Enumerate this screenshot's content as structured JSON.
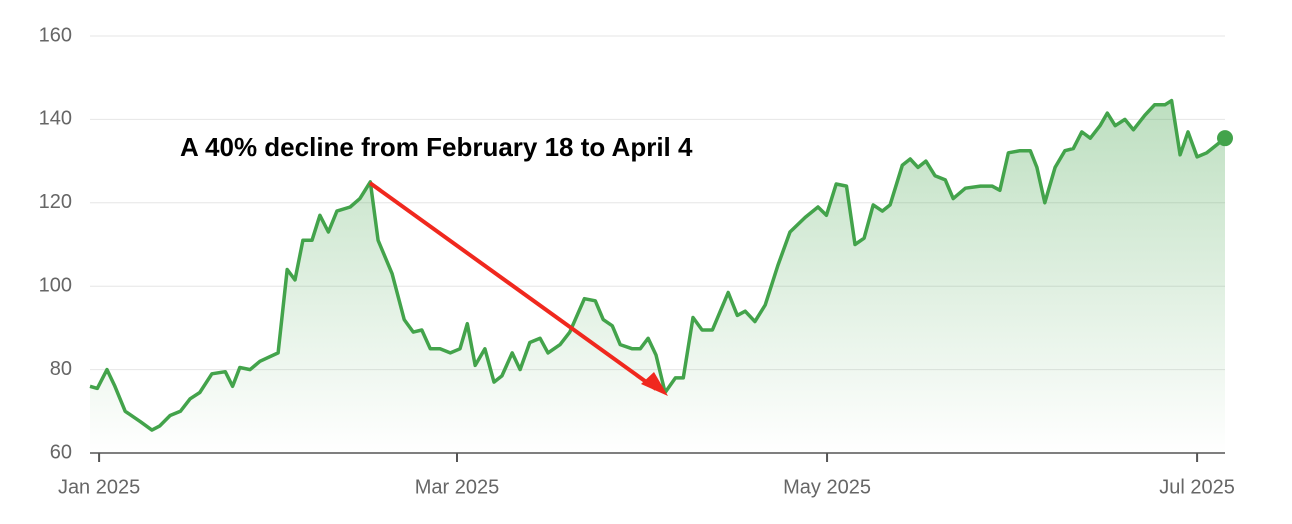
{
  "chart_data": {
    "type": "line",
    "annotation": "A 40% decline from February 18 to April 4",
    "color": "#43a34b",
    "x": [
      -1.5,
      -0.3,
      1.3,
      2.6,
      4.3,
      6.8,
      8.7,
      10,
      11.7,
      13.4,
      15,
      16.6,
      18.6,
      20.8,
      22,
      23.2,
      24.9,
      26.5,
      29.5,
      31,
      32.3,
      33.6,
      35.1,
      36.4,
      37.8,
      39.2,
      41.4,
      43,
      44.7,
      46,
      48.3,
      50.3,
      51.8,
      53.2,
      54.6,
      56.2,
      57.9,
      59.5,
      60.7,
      62,
      63.6,
      65.1,
      66.4,
      68.1,
      69.4,
      71,
      72.7,
      74,
      76,
      77.6,
      80,
      81.8,
      83.1,
      84.6,
      85.9,
      87.9,
      89.2,
      90.5,
      91.8,
      93.3,
      95,
      96.3,
      97.9,
      99.4,
      101.1,
      102.4,
      103.7,
      105.2,
      106.5,
      108.1,
      109.8,
      111.9,
      113.9,
      116.4,
      118.5,
      119.9,
      121.5,
      123.2,
      124.6,
      126.1,
      127.6,
      129.1,
      130.4,
      132.4,
      133.7,
      135,
      136.3,
      137.8,
      139.5,
      140.8,
      142.8,
      145.3,
      147.2,
      148.5,
      149.9,
      151.8,
      153.5,
      154.6,
      155.9,
      157.6,
      159.2,
      160.6,
      162,
      163.4,
      165,
      166.2,
      167.5,
      169.1,
      170.5,
      172.4,
      174,
      175.7,
      176.8,
      178.2,
      179.5,
      181,
      182.6,
      185.6
    ],
    "values": [
      76,
      75.5,
      80,
      76,
      70,
      67.5,
      65.5,
      66.5,
      69,
      70,
      73,
      74.5,
      79,
      79.5,
      76,
      80.5,
      80,
      82,
      84,
      104,
      101.5,
      111,
      111,
      117,
      113,
      118,
      119,
      121,
      125,
      111,
      103,
      92,
      89,
      89.5,
      85,
      85,
      84,
      85,
      91,
      81,
      85,
      77,
      78.5,
      84,
      80,
      86.5,
      87.5,
      84,
      86,
      89,
      97,
      96.5,
      92,
      90.5,
      86,
      85,
      85,
      87.5,
      83.5,
      74.5,
      78,
      78,
      92.5,
      89.5,
      89.5,
      94,
      98.5,
      93,
      94,
      91.5,
      95.5,
      105,
      113,
      116.5,
      119,
      117,
      124.5,
      124,
      110,
      111.5,
      119.5,
      118,
      119.5,
      129,
      130.5,
      128.5,
      130,
      126.5,
      125.5,
      121,
      123.5,
      124,
      124,
      123,
      132,
      132.5,
      132.5,
      128.5,
      120,
      128.5,
      132.5,
      133,
      137,
      135.5,
      138.5,
      141.5,
      138.5,
      140,
      137.5,
      141,
      143.5,
      143.5,
      144.5,
      131.5,
      137,
      131,
      132,
      135.5
    ],
    "xlim": [
      -1.5,
      185.6
    ],
    "xticks": [
      {
        "value": 0,
        "label": "Jan 2025"
      },
      {
        "value": 59,
        "label": "Mar 2025"
      },
      {
        "value": 120,
        "label": "May 2025"
      },
      {
        "value": 181,
        "label": "Jul 2025"
      }
    ],
    "ylim": [
      60,
      160
    ],
    "yticks": [
      60,
      80,
      100,
      120,
      140,
      160
    ],
    "grid": true
  }
}
